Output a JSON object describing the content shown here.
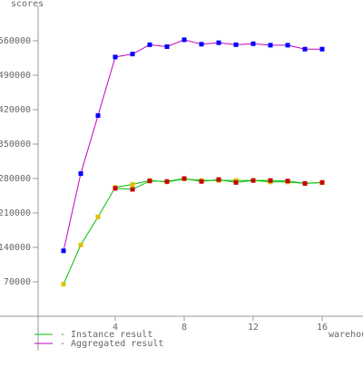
{
  "chart_data": {
    "type": "line",
    "ylabel": "scores",
    "xlabel": "warehouses",
    "xlim": [
      -0.5,
      19
    ],
    "ylim": [
      -70000,
      630000
    ],
    "x_ticks": [
      4,
      8,
      12,
      16
    ],
    "x_tick_labels": [
      "4",
      "8",
      "12",
      "16"
    ],
    "y_ticks": [
      70000,
      140000,
      210000,
      280000,
      350000,
      420000,
      490000,
      560000
    ],
    "y_tick_labels": [
      "70000",
      "140000",
      "210000",
      "280000",
      "350000",
      "420000",
      "490000",
      "560000"
    ],
    "grid": false,
    "legend_position": "bottom-left",
    "x": [
      1,
      2,
      3,
      4,
      5,
      6,
      7,
      8,
      9,
      10,
      11,
      12,
      13,
      14,
      15,
      16
    ],
    "series": [
      {
        "name": "Instance result",
        "role": "instance",
        "color": "#00c000",
        "variants": [
          {
            "marker_color": "#e0c000",
            "values": [
              65000,
              145000,
              202000,
              262000,
              268000,
              276000,
              273000,
              279000,
              276000,
              276000,
              276000,
              276000,
              273000,
              273000,
              270000,
              272000
            ]
          },
          {
            "marker_color": "#cc0000",
            "values": [
              null,
              null,
              null,
              260000,
              258000,
              275000,
              274000,
              280000,
              274000,
              278000,
              272000,
              276000,
              276000,
              275000,
              270000,
              272000
            ]
          }
        ]
      },
      {
        "name": "Aggregated result",
        "role": "aggregated",
        "color": "#c000c0",
        "marker_color": "#0000ff",
        "values": [
          133000,
          290000,
          408000,
          527000,
          533000,
          552000,
          548000,
          562000,
          553000,
          556000,
          552000,
          554000,
          551000,
          551000,
          543000,
          543000
        ]
      }
    ]
  }
}
